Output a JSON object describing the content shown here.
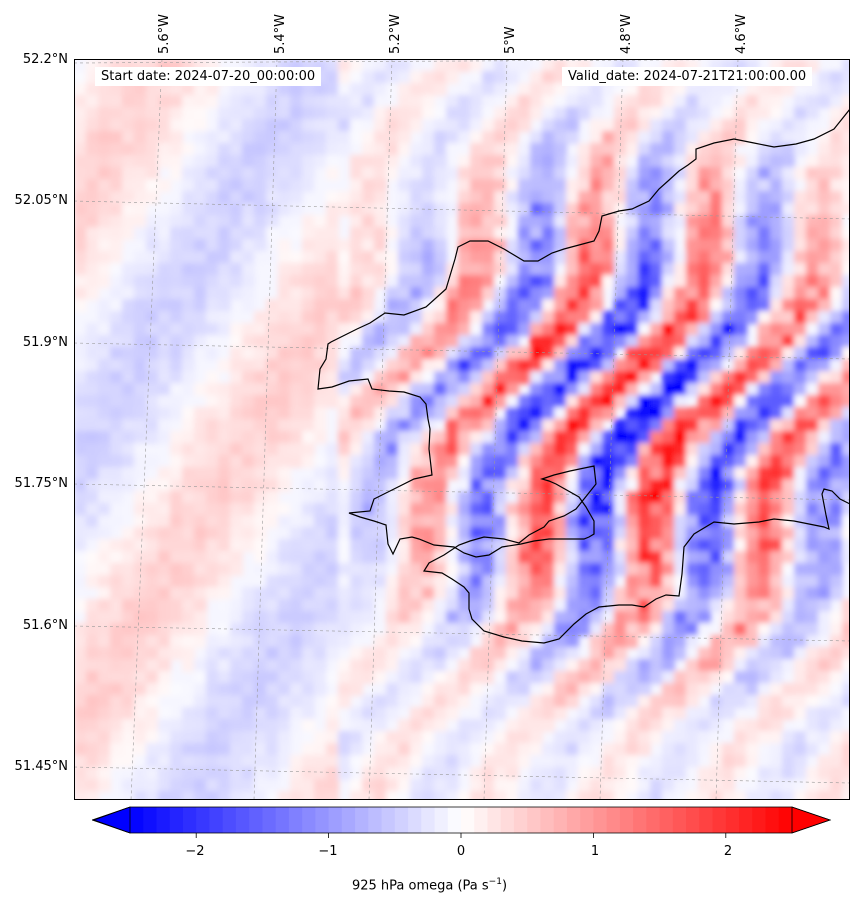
{
  "header": {
    "start_date": "Start date: 2024-07-20_00:00:00",
    "valid_date": "Valid_date: 2024-07-21T21:00:00.00"
  },
  "axes": {
    "lon_labels": [
      "5.6°W",
      "5.4°W",
      "5.2°W",
      "5°W",
      "4.8°W",
      "4.6°W"
    ],
    "lat_labels": [
      "52.2°N",
      "52.05°N",
      "51.9°N",
      "51.75°N",
      "51.6°N",
      "51.45°N"
    ]
  },
  "field": {
    "name": "925 hPa omega",
    "units": "Pa s⁻¹",
    "colormap": "bwr",
    "color_negative": "#0000ff",
    "color_zero": "#ffffff",
    "color_positive": "#ff0000",
    "range": [
      -2.5,
      2.5
    ]
  },
  "colorbar": {
    "ticks": [
      "−2",
      "−1",
      "0",
      "1",
      "2"
    ],
    "label_text": "925 hPa omega (Pa s",
    "label_exp": "−1",
    "label_close": ")"
  }
}
